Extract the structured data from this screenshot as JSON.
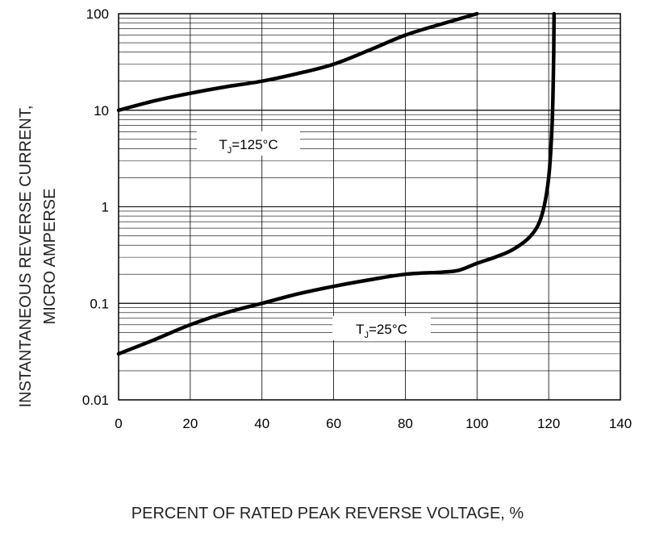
{
  "chart_data": {
    "type": "line",
    "xlabel": "PERCENT OF RATED PEAK REVERSE VOLTAGE, %",
    "ylabel_line1": "INSTANTANEOUS REVERSE CURRENT,",
    "ylabel_line2": "MICRO AMPERSE",
    "xlim": [
      0,
      140
    ],
    "ylim": [
      0.01,
      100
    ],
    "yscale": "log",
    "grid": true,
    "x_ticks": [
      "0",
      "20",
      "40",
      "60",
      "80",
      "100",
      "120",
      "140"
    ],
    "y_ticks": [
      "0.01",
      "0.1",
      "1",
      "10",
      "100"
    ],
    "series": [
      {
        "label_main": "T",
        "label_sub": "J",
        "label_rest": "=125°C",
        "points": [
          [
            0,
            10
          ],
          [
            10,
            12.5
          ],
          [
            20,
            15
          ],
          [
            30,
            17.5
          ],
          [
            40,
            20
          ],
          [
            50,
            24
          ],
          [
            60,
            30
          ],
          [
            70,
            42
          ],
          [
            80,
            60
          ],
          [
            90,
            78
          ],
          [
            100,
            100
          ]
        ]
      },
      {
        "label_main": "T",
        "label_sub": "J",
        "label_rest": "=25°C",
        "points": [
          [
            0,
            0.03
          ],
          [
            10,
            0.042
          ],
          [
            20,
            0.06
          ],
          [
            30,
            0.08
          ],
          [
            40,
            0.1
          ],
          [
            50,
            0.125
          ],
          [
            60,
            0.15
          ],
          [
            70,
            0.175
          ],
          [
            80,
            0.2
          ],
          [
            90,
            0.21
          ],
          [
            95,
            0.22
          ],
          [
            100,
            0.26
          ],
          [
            105,
            0.3
          ],
          [
            110,
            0.36
          ],
          [
            115,
            0.5
          ],
          [
            118,
            0.8
          ],
          [
            120,
            2
          ],
          [
            121,
            8
          ],
          [
            121.4,
            40
          ],
          [
            121.5,
            100
          ]
        ]
      }
    ]
  }
}
